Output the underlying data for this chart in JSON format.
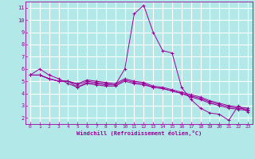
{
  "xlabel": "Windchill (Refroidissement éolien,°C)",
  "background_color": "#b3e8e8",
  "grid_color": "#ffffff",
  "line_color": "#990099",
  "xlim": [
    -0.5,
    23.5
  ],
  "ylim": [
    1.5,
    11.5
  ],
  "yticks": [
    2,
    3,
    4,
    5,
    6,
    7,
    8,
    9,
    10,
    11
  ],
  "xticks": [
    0,
    1,
    2,
    3,
    4,
    5,
    6,
    7,
    8,
    9,
    10,
    11,
    12,
    13,
    14,
    15,
    16,
    17,
    18,
    19,
    20,
    21,
    22,
    23
  ],
  "series": [
    [
      5.5,
      6.0,
      5.5,
      5.2,
      4.8,
      4.5,
      4.9,
      4.8,
      4.7,
      4.7,
      6.0,
      10.5,
      11.2,
      9.0,
      7.5,
      7.3,
      4.5,
      3.5,
      2.8,
      2.4,
      2.3,
      1.8,
      3.0,
      2.5
    ],
    [
      5.5,
      5.5,
      5.2,
      5.0,
      5.0,
      4.5,
      4.8,
      4.7,
      4.6,
      4.6,
      5.0,
      4.8,
      4.7,
      4.5,
      4.4,
      4.2,
      4.0,
      3.7,
      3.5,
      3.2,
      3.0,
      2.8,
      2.7,
      2.6
    ],
    [
      5.5,
      5.5,
      5.2,
      5.0,
      5.0,
      4.7,
      5.0,
      4.9,
      4.8,
      4.7,
      5.1,
      4.9,
      4.8,
      4.5,
      4.4,
      4.2,
      4.0,
      3.8,
      3.6,
      3.3,
      3.1,
      2.9,
      2.8,
      2.7
    ],
    [
      5.5,
      5.5,
      5.2,
      5.0,
      5.0,
      4.8,
      5.1,
      5.0,
      4.9,
      4.8,
      5.2,
      5.0,
      4.9,
      4.6,
      4.5,
      4.3,
      4.1,
      3.9,
      3.7,
      3.4,
      3.2,
      3.0,
      2.9,
      2.8
    ]
  ]
}
